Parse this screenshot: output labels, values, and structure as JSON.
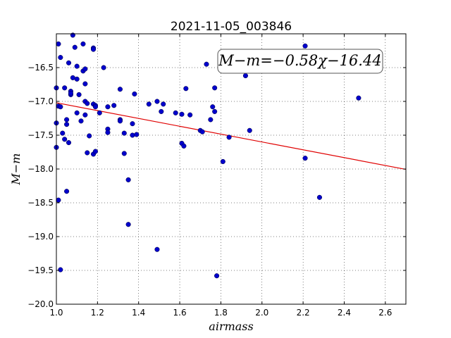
{
  "chart_data": {
    "type": "scatter",
    "title": "2021-11-05_003846",
    "xlabel": "airmass",
    "ylabel": "M−m",
    "xlim": [
      1.0,
      2.7
    ],
    "ylim": [
      -20.0,
      -16.0
    ],
    "y_inverted": false,
    "grid": true,
    "x_ticks": [
      "1.0",
      "1.2",
      "1.4",
      "1.6",
      "1.8",
      "2.0",
      "2.2",
      "2.4",
      "2.6"
    ],
    "y_ticks": [
      "−16.5",
      "−17.0",
      "−17.5",
      "−18.0",
      "−18.5",
      "−19.0",
      "−19.5",
      "−20.0"
    ],
    "annotation": "M−m=−0.58χ−16.44",
    "fit": {
      "slope": -0.58,
      "intercept": -16.44,
      "color": "#e00000"
    },
    "point_color": "#0000cc",
    "points": [
      [
        1.01,
        -16.15
      ],
      [
        1.02,
        -16.35
      ],
      [
        1.0,
        -16.8
      ],
      [
        1.01,
        -17.07
      ],
      [
        1.02,
        -17.08
      ],
      [
        1.0,
        -17.32
      ],
      [
        1.03,
        -17.47
      ],
      [
        1.04,
        -17.56
      ],
      [
        1.0,
        -17.68
      ],
      [
        1.05,
        -17.27
      ],
      [
        1.05,
        -17.34
      ],
      [
        1.06,
        -17.61
      ],
      [
        1.04,
        -16.8
      ],
      [
        1.06,
        -16.43
      ],
      [
        1.07,
        -16.85
      ],
      [
        1.07,
        -16.9
      ],
      [
        1.07,
        -16.88
      ],
      [
        1.08,
        -16.65
      ],
      [
        1.08,
        -16.02
      ],
      [
        1.09,
        -16.2
      ],
      [
        1.1,
        -16.48
      ],
      [
        1.1,
        -16.67
      ],
      [
        1.11,
        -16.9
      ],
      [
        1.13,
        -16.15
      ],
      [
        1.13,
        -16.55
      ],
      [
        1.14,
        -16.52
      ],
      [
        1.14,
        -16.74
      ],
      [
        1.14,
        -17.0
      ],
      [
        1.15,
        -17.03
      ],
      [
        1.14,
        -17.2
      ],
      [
        1.1,
        -17.17
      ],
      [
        1.12,
        -17.29
      ],
      [
        1.18,
        -16.21
      ],
      [
        1.18,
        -16.23
      ],
      [
        1.18,
        -17.04
      ],
      [
        1.19,
        -17.06
      ],
      [
        1.19,
        -17.08
      ],
      [
        1.21,
        -17.17
      ],
      [
        1.23,
        -16.5
      ],
      [
        1.25,
        -17.08
      ],
      [
        1.28,
        -17.06
      ],
      [
        1.31,
        -16.82
      ],
      [
        1.31,
        -17.27
      ],
      [
        1.31,
        -17.29
      ],
      [
        1.25,
        -17.41
      ],
      [
        1.25,
        -17.46
      ],
      [
        1.16,
        -17.51
      ],
      [
        1.15,
        -17.76
      ],
      [
        1.18,
        -17.78
      ],
      [
        1.19,
        -17.74
      ],
      [
        1.33,
        -17.47
      ],
      [
        1.33,
        -17.77
      ],
      [
        1.37,
        -17.33
      ],
      [
        1.37,
        -17.5
      ],
      [
        1.38,
        -16.89
      ],
      [
        1.39,
        -17.49
      ],
      [
        1.35,
        -18.16
      ],
      [
        1.35,
        -18.82
      ],
      [
        1.45,
        -17.04
      ],
      [
        1.49,
        -17.0
      ],
      [
        1.51,
        -17.15
      ],
      [
        1.52,
        -17.04
      ],
      [
        1.49,
        -19.19
      ],
      [
        1.58,
        -17.17
      ],
      [
        1.61,
        -17.19
      ],
      [
        1.61,
        -17.62
      ],
      [
        1.62,
        -17.66
      ],
      [
        1.63,
        -16.81
      ],
      [
        1.65,
        -17.2
      ],
      [
        1.7,
        -17.43
      ],
      [
        1.71,
        -17.45
      ],
      [
        1.73,
        -16.45
      ],
      [
        1.75,
        -17.27
      ],
      [
        1.76,
        -17.08
      ],
      [
        1.77,
        -16.8
      ],
      [
        1.77,
        -17.15
      ],
      [
        1.78,
        -19.58
      ],
      [
        1.81,
        -17.89
      ],
      [
        1.84,
        -17.53
      ],
      [
        1.92,
        -16.62
      ],
      [
        1.94,
        -17.43
      ],
      [
        2.21,
        -16.18
      ],
      [
        2.21,
        -17.84
      ],
      [
        2.28,
        -18.42
      ],
      [
        2.47,
        -16.95
      ],
      [
        1.05,
        -18.33
      ],
      [
        1.01,
        -18.46
      ],
      [
        1.02,
        -19.49
      ]
    ]
  }
}
